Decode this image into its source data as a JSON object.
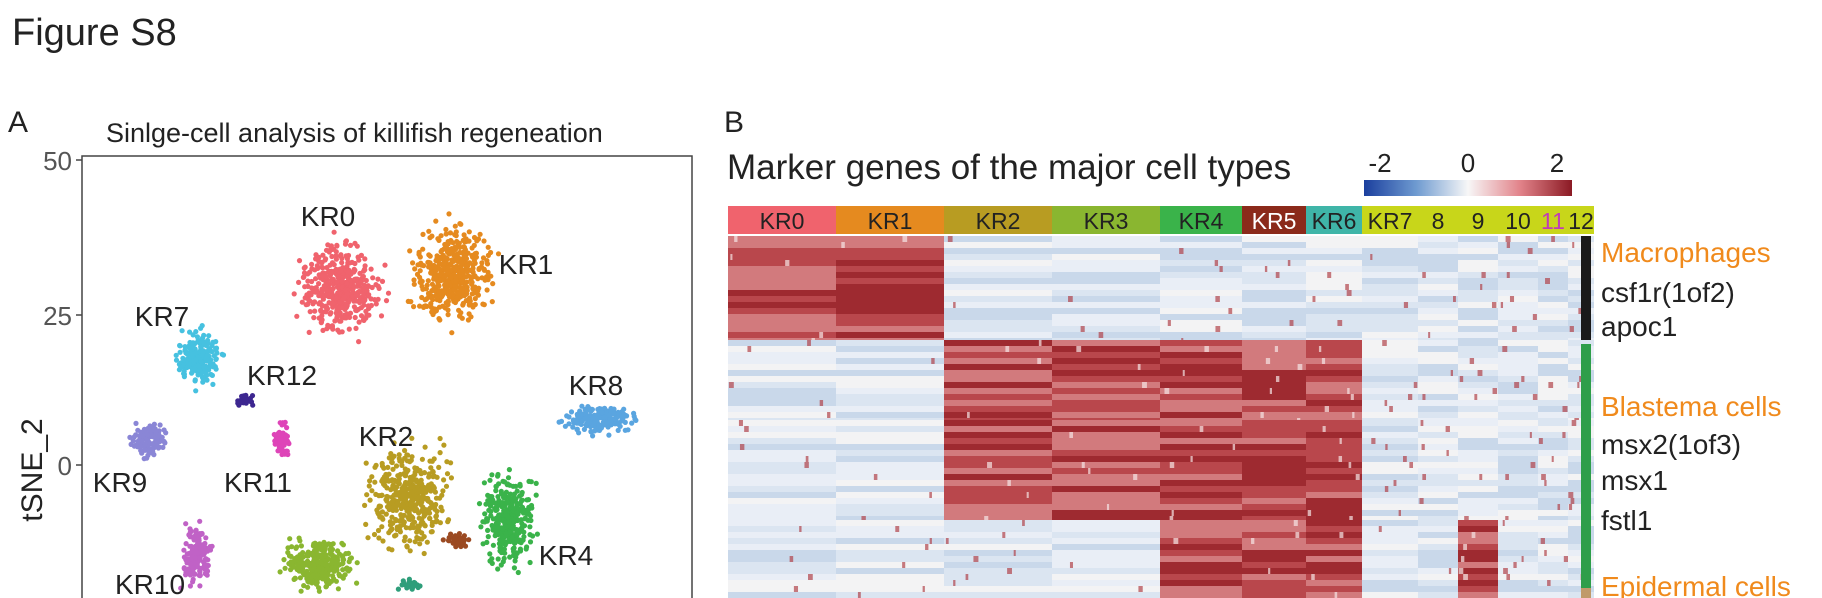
{
  "figure": {
    "title": "Figure S8"
  },
  "panel_a": {
    "letter": "A",
    "title": "Sinlge-cell analysis of killifish regeneation",
    "ylabel": "tSNE_2",
    "yticks": [
      "50",
      "25",
      "0"
    ],
    "clusters": [
      {
        "name": "KR0",
        "label": "KR0",
        "color": "#f0636d"
      },
      {
        "name": "KR1",
        "label": "KR1",
        "color": "#e58a1f"
      },
      {
        "name": "KR2",
        "label": "KR2",
        "color": "#b89c22"
      },
      {
        "name": "KR3",
        "label": "",
        "color": "#8ab630"
      },
      {
        "name": "KR4",
        "label": "KR4",
        "color": "#3ab34a"
      },
      {
        "name": "KR5",
        "label": "",
        "color": "#9b4a22"
      },
      {
        "name": "KR6",
        "label": "",
        "color": "#2e9e7a"
      },
      {
        "name": "KR7",
        "label": "KR7",
        "color": "#46c1e0"
      },
      {
        "name": "KR8",
        "label": "KR8",
        "color": "#5aa5e0"
      },
      {
        "name": "KR9",
        "label": "KR9",
        "color": "#8a86d6"
      },
      {
        "name": "KR10",
        "label": "KR10",
        "color": "#c062c6"
      },
      {
        "name": "KR11",
        "label": "KR11",
        "color": "#de44b8"
      },
      {
        "name": "KR12",
        "label": "KR12",
        "color": "#3d2790"
      }
    ]
  },
  "panel_b": {
    "letter": "B",
    "title": "Marker genes of the major cell types",
    "colorbar": {
      "ticks": [
        "-2",
        "0",
        "2"
      ],
      "low": "#1b3f9e",
      "mid": "#f7f7f7",
      "high": "#8b1a24"
    },
    "clusters": [
      {
        "label": "KR0",
        "color": "#f0636d",
        "text": "#222222"
      },
      {
        "label": "KR1",
        "color": "#e58a1f",
        "text": "#222222"
      },
      {
        "label": "KR2",
        "color": "#b89c22",
        "text": "#222222"
      },
      {
        "label": "KR3",
        "color": "#8ab630",
        "text": "#222222"
      },
      {
        "label": "KR4",
        "color": "#3ab34a",
        "text": "#222222"
      },
      {
        "label": "KR5",
        "color": "#8b2a1a",
        "text": "#ffffff"
      },
      {
        "label": "KR6",
        "color": "#3fb5a8",
        "text": "#222222"
      },
      {
        "label": "KR7",
        "color": "#c8d61a",
        "text": "#222222"
      },
      {
        "label": "8",
        "color": "#c8d61a",
        "text": "#222222"
      },
      {
        "label": "9",
        "color": "#c8d61a",
        "text": "#222222"
      },
      {
        "label": "10",
        "color": "#c8d61a",
        "text": "#222222"
      },
      {
        "label": "11",
        "color": "#c8d61a",
        "text": "#c03bb8"
      },
      {
        "label": "12",
        "color": "#c8d61a",
        "text": "#222222"
      }
    ],
    "groups": [
      {
        "name": "Macrophages",
        "genes": [
          "csf1r(1of2)",
          "apoc1"
        ],
        "bar_color": "#1a1a1a"
      },
      {
        "name": "Blastema cells",
        "genes": [
          "msx2(1of3)",
          "msx1",
          "fstl1"
        ],
        "bar_color": "#2e9e4a"
      },
      {
        "name": "Epidermal cells",
        "genes": [],
        "bar_color": "#c09a6a"
      }
    ],
    "group_label_color": "#f08a1c"
  }
}
